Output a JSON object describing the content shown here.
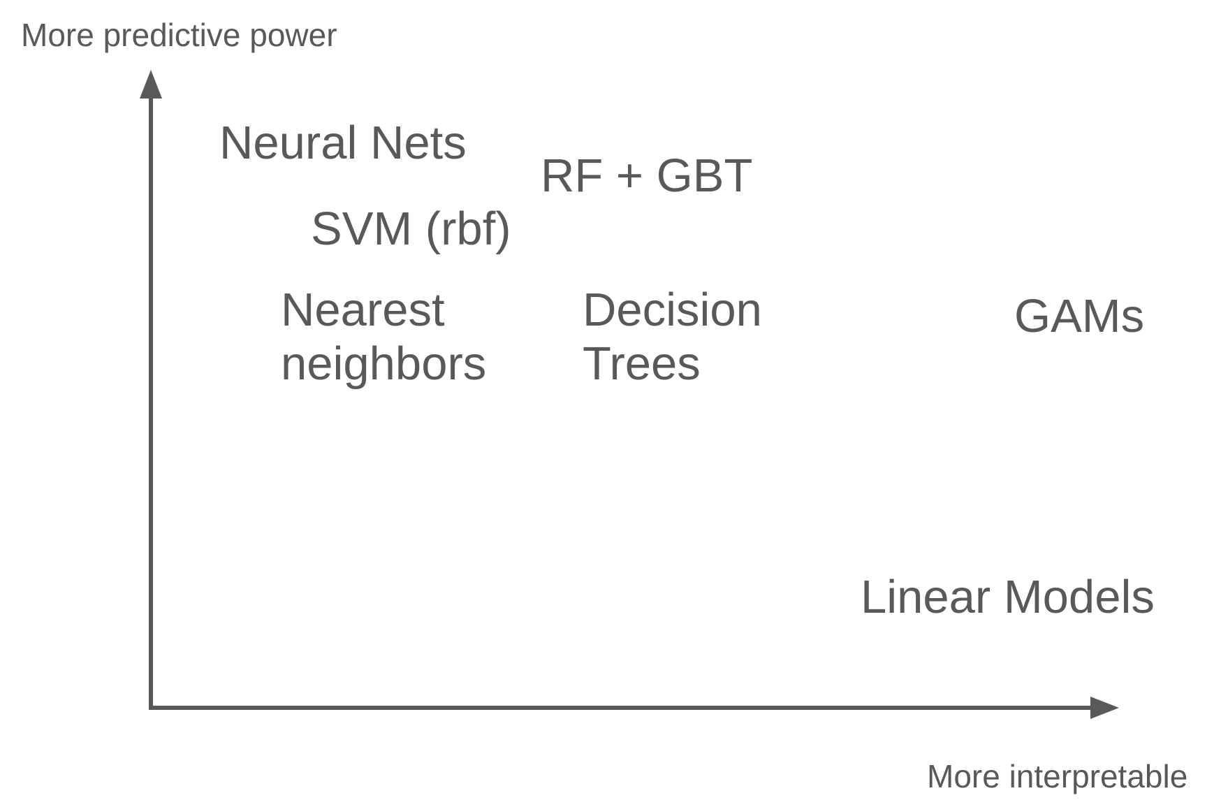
{
  "axes": {
    "y_label": "More predictive power",
    "x_label": "More interpretable"
  },
  "models": {
    "neural_nets": "Neural Nets",
    "rf_gbt": "RF + GBT",
    "svm": "SVM (rbf)",
    "nearest_neighbors": [
      "Nearest",
      "neighbors"
    ],
    "decision_trees": [
      "Decision",
      "Trees"
    ],
    "gams": "GAMs",
    "linear_models": "Linear Models"
  },
  "colors": {
    "text": "#595959",
    "axis": "#595959",
    "background": "#ffffff"
  }
}
